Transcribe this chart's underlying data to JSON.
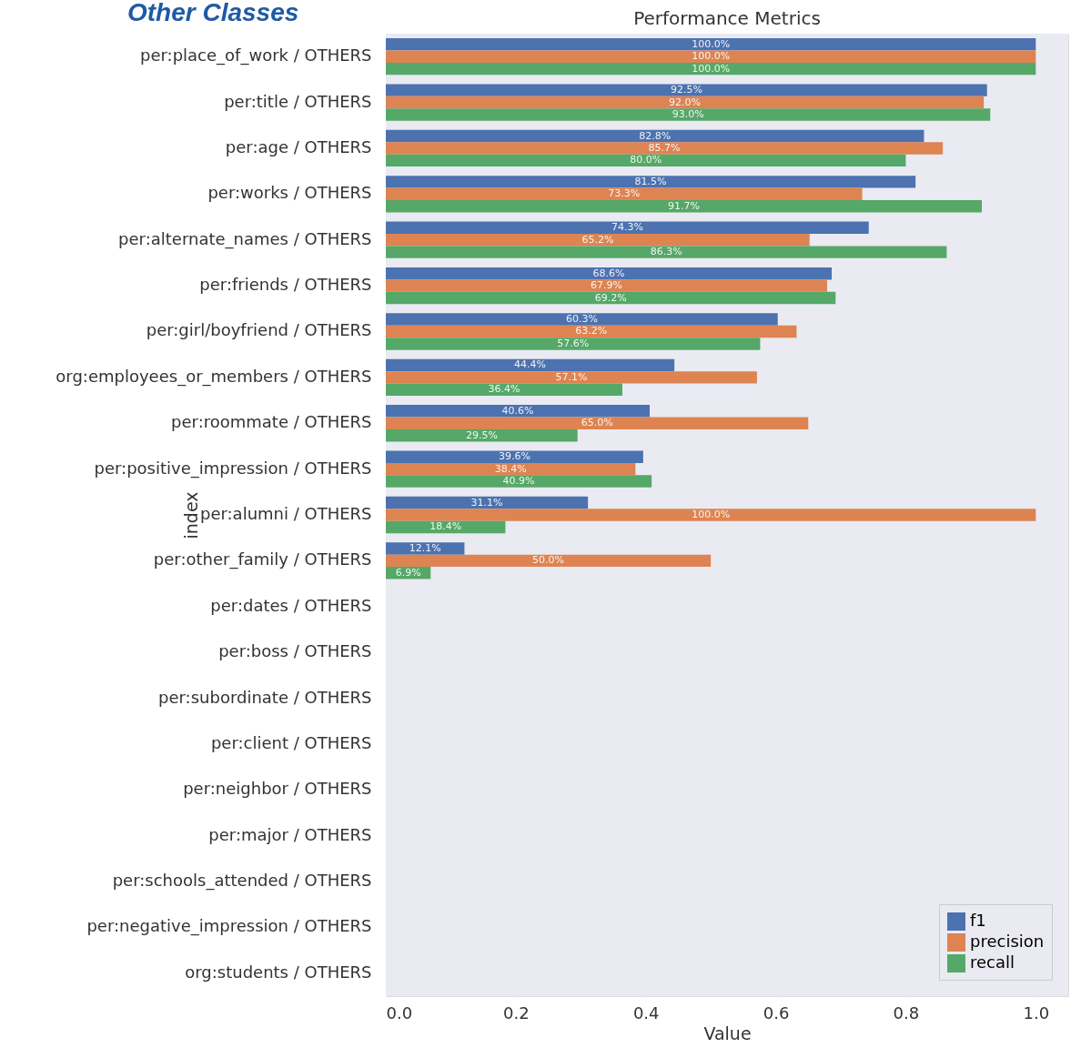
{
  "chart_data": {
    "type": "bar",
    "orientation": "horizontal",
    "title": "Performance Metrics",
    "xlabel": "Value",
    "ylabel": "index",
    "annotations": [
      "Other Classes"
    ],
    "categories": [
      "per:place_of_work / OTHERS",
      "per:title / OTHERS",
      "per:age / OTHERS",
      "per:works / OTHERS",
      "per:alternate_names / OTHERS",
      "per:friends / OTHERS",
      "per:girl/boyfriend / OTHERS",
      "org:employees_or_members / OTHERS",
      "per:roommate / OTHERS",
      "per:positive_impression / OTHERS",
      "per:alumni / OTHERS",
      "per:other_family / OTHERS",
      "per:dates / OTHERS",
      "per:boss / OTHERS",
      "per:subordinate / OTHERS",
      "per:client / OTHERS",
      "per:neighbor / OTHERS",
      "per:major / OTHERS",
      "per:schools_attended / OTHERS",
      "per:negative_impression / OTHERS",
      "org:students / OTHERS"
    ],
    "series": [
      {
        "name": "f1",
        "color": "#4c72b0",
        "values": [
          1.0,
          0.925,
          0.828,
          0.815,
          0.743,
          0.686,
          0.603,
          0.444,
          0.406,
          0.396,
          0.311,
          0.121,
          null,
          null,
          null,
          null,
          null,
          null,
          null,
          null,
          null
        ],
        "value_labels": [
          "100.0%",
          "92.5%",
          "82.8%",
          "81.5%",
          "74.3%",
          "68.6%",
          "60.3%",
          "44.4%",
          "40.6%",
          "39.6%",
          "31.1%",
          "12.1%",
          null,
          null,
          null,
          null,
          null,
          null,
          null,
          null,
          null
        ]
      },
      {
        "name": "precision",
        "color": "#dd8452",
        "values": [
          1.0,
          0.92,
          0.857,
          0.733,
          0.652,
          0.679,
          0.632,
          0.571,
          0.65,
          0.384,
          1.0,
          0.5,
          null,
          null,
          null,
          null,
          null,
          null,
          null,
          null,
          null
        ],
        "value_labels": [
          "100.0%",
          "92.0%",
          "85.7%",
          "73.3%",
          "65.2%",
          "67.9%",
          "63.2%",
          "57.1%",
          "65.0%",
          "38.4%",
          "100.0%",
          "50.0%",
          null,
          null,
          null,
          null,
          null,
          null,
          null,
          null,
          null
        ]
      },
      {
        "name": "recall",
        "color": "#55a868",
        "values": [
          1.0,
          0.93,
          0.8,
          0.917,
          0.863,
          0.692,
          0.576,
          0.364,
          0.295,
          0.409,
          0.184,
          0.069,
          null,
          null,
          null,
          null,
          null,
          null,
          null,
          null,
          null
        ],
        "value_labels": [
          "100.0%",
          "93.0%",
          "80.0%",
          "91.7%",
          "86.3%",
          "69.2%",
          "57.6%",
          "36.4%",
          "29.5%",
          "40.9%",
          "18.4%",
          "6.9%",
          null,
          null,
          null,
          null,
          null,
          null,
          null,
          null,
          null
        ]
      }
    ],
    "xlim": [
      0,
      1.05
    ],
    "xticks": [
      {
        "value": 0,
        "label": "0.0"
      },
      {
        "value": 0.2,
        "label": "0.2"
      },
      {
        "value": 0.4,
        "label": "0.4"
      },
      {
        "value": 0.6,
        "label": "0.6"
      },
      {
        "value": 0.8,
        "label": "0.8"
      },
      {
        "value": 1,
        "label": "1.0"
      }
    ],
    "grid": "x",
    "legend": "bottom right"
  }
}
